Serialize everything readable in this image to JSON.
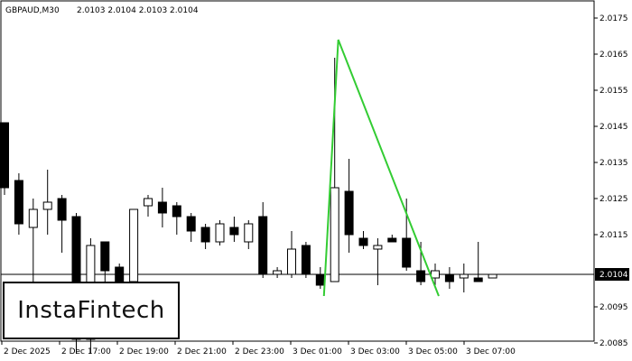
{
  "header": {
    "symbol": "GBPAUD,M30",
    "ohlc": "2.0103 2.0104 2.0103 2.0104"
  },
  "logo": {
    "text": "InstaFintech"
  },
  "chart_data": {
    "type": "candlestick",
    "ylim": [
      2.008,
      2.018
    ],
    "y_ticks": [
      "2.0175",
      "2.0165",
      "2.0155",
      "2.0145",
      "2.0135",
      "2.0125",
      "2.0115",
      "2.0104",
      "2.0095",
      "2.0085"
    ],
    "y_tick_values": [
      2.0175,
      2.0165,
      2.0155,
      2.0145,
      2.0135,
      2.0125,
      2.0115,
      2.0104,
      2.0095,
      2.0085
    ],
    "x_ticks": [
      "2 Dec 2025",
      "2 Dec 17:00",
      "2 Dec 19:00",
      "2 Dec 21:00",
      "2 Dec 23:00",
      "3 Dec 01:00",
      "3 Dec 03:00",
      "3 Dec 05:00",
      "3 Dec 07:00"
    ],
    "current_price": "2.0104",
    "current_price_value": 2.0104,
    "colors": {
      "bull": "#ffffff",
      "bear": "#000000",
      "pattern": "#33cc33",
      "current_price_bg": "#000000"
    },
    "candles": [
      {
        "o": 2.0146,
        "h": 2.0146,
        "l": 2.0126,
        "c": 2.0128
      },
      {
        "o": 2.013,
        "h": 2.0132,
        "l": 2.0115,
        "c": 2.0118
      },
      {
        "o": 2.0117,
        "h": 2.0125,
        "l": 2.0102,
        "c": 2.0122
      },
      {
        "o": 2.0122,
        "h": 2.0133,
        "l": 2.0115,
        "c": 2.0124
      },
      {
        "o": 2.0125,
        "h": 2.0126,
        "l": 2.011,
        "c": 2.0119
      },
      {
        "o": 2.012,
        "h": 2.0121,
        "l": 2.0082,
        "c": 2.0086
      },
      {
        "o": 2.0086,
        "h": 2.0114,
        "l": 2.0082,
        "c": 2.0112
      },
      {
        "o": 2.0113,
        "h": 2.0113,
        "l": 2.0097,
        "c": 2.0105
      },
      {
        "o": 2.0106,
        "h": 2.0107,
        "l": 2.0098,
        "c": 2.0101
      },
      {
        "o": 2.0102,
        "h": 2.0122,
        "l": 2.0101,
        "c": 2.0122
      },
      {
        "o": 2.0123,
        "h": 2.0126,
        "l": 2.012,
        "c": 2.0125
      },
      {
        "o": 2.0124,
        "h": 2.0128,
        "l": 2.0117,
        "c": 2.0121
      },
      {
        "o": 2.0123,
        "h": 2.0124,
        "l": 2.0115,
        "c": 2.012
      },
      {
        "o": 2.012,
        "h": 2.0121,
        "l": 2.0113,
        "c": 2.0116
      },
      {
        "o": 2.0117,
        "h": 2.0118,
        "l": 2.0111,
        "c": 2.0113
      },
      {
        "o": 2.0113,
        "h": 2.0119,
        "l": 2.0112,
        "c": 2.0118
      },
      {
        "o": 2.0117,
        "h": 2.012,
        "l": 2.0113,
        "c": 2.0115
      },
      {
        "o": 2.0113,
        "h": 2.0119,
        "l": 2.0111,
        "c": 2.0118
      },
      {
        "o": 2.012,
        "h": 2.0124,
        "l": 2.0103,
        "c": 2.0104
      },
      {
        "o": 2.0104,
        "h": 2.0106,
        "l": 2.0103,
        "c": 2.0105
      },
      {
        "o": 2.0104,
        "h": 2.0116,
        "l": 2.0103,
        "c": 2.0111
      },
      {
        "o": 2.0112,
        "h": 2.0113,
        "l": 2.0103,
        "c": 2.0104
      },
      {
        "o": 2.0104,
        "h": 2.0106,
        "l": 2.01,
        "c": 2.0101
      },
      {
        "o": 2.0102,
        "h": 2.0164,
        "l": 2.0102,
        "c": 2.0128
      },
      {
        "o": 2.0127,
        "h": 2.0136,
        "l": 2.011,
        "c": 2.0115
      },
      {
        "o": 2.0114,
        "h": 2.0116,
        "l": 2.0111,
        "c": 2.0112
      },
      {
        "o": 2.0111,
        "h": 2.0114,
        "l": 2.0101,
        "c": 2.0112
      },
      {
        "o": 2.0114,
        "h": 2.0115,
        "l": 2.0113,
        "c": 2.0113
      },
      {
        "o": 2.0114,
        "h": 2.0125,
        "l": 2.0105,
        "c": 2.0106
      },
      {
        "o": 2.0105,
        "h": 2.0113,
        "l": 2.0101,
        "c": 2.0102
      },
      {
        "o": 2.0103,
        "h": 2.0107,
        "l": 2.0101,
        "c": 2.0105
      },
      {
        "o": 2.0104,
        "h": 2.0106,
        "l": 2.01,
        "c": 2.0102
      },
      {
        "o": 2.0103,
        "h": 2.0107,
        "l": 2.0099,
        "c": 2.0104
      },
      {
        "o": 2.0103,
        "h": 2.0113,
        "l": 2.0102,
        "c": 2.0102
      },
      {
        "o": 2.0103,
        "h": 2.0104,
        "l": 2.0103,
        "c": 2.0104
      }
    ],
    "pattern_line": [
      {
        "index": 22.25,
        "price": 2.0098
      },
      {
        "index": 23.25,
        "price": 2.0169
      },
      {
        "index": 30.25,
        "price": 2.0098
      }
    ]
  }
}
